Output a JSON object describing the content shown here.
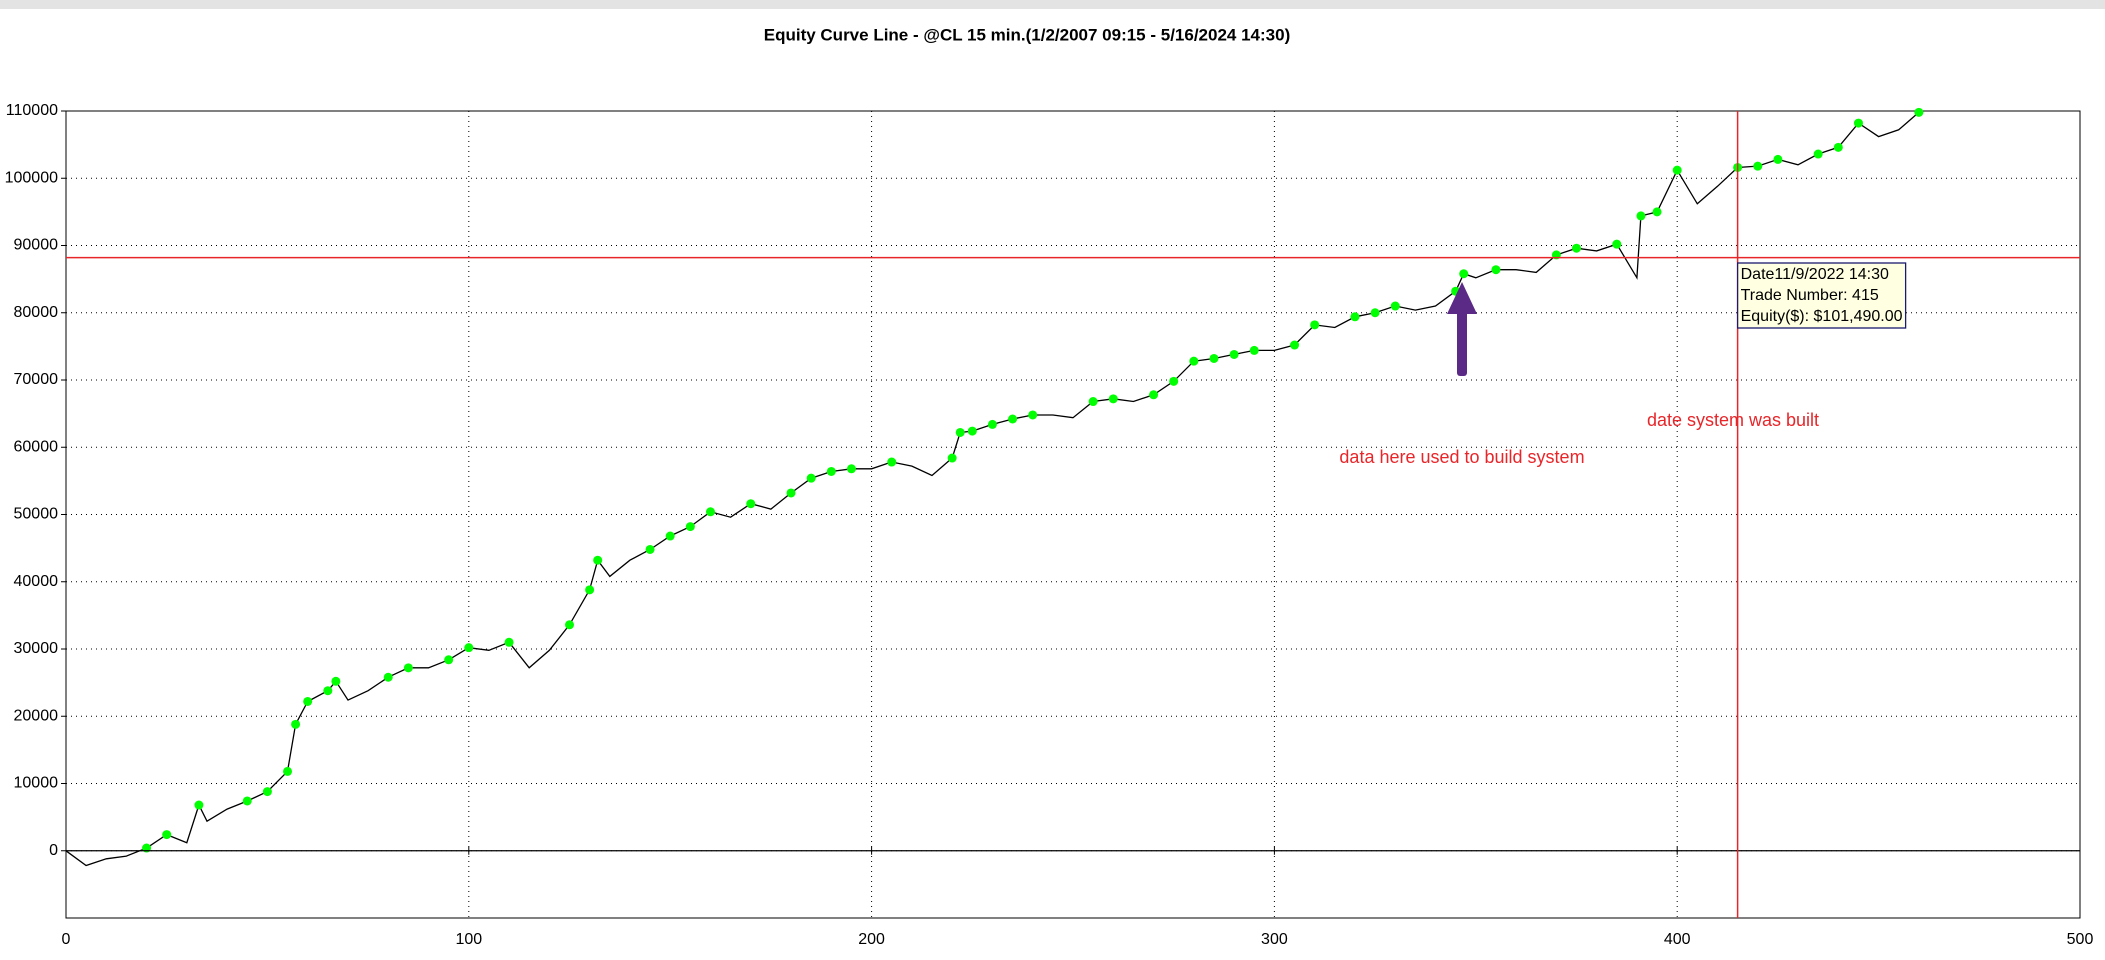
{
  "chart_data": {
    "type": "line",
    "title": "Equity Curve Line - @CL 15 min.(1/2/2007 09:15 - 5/16/2024 14:30)",
    "x": [
      0,
      5,
      10,
      15,
      20,
      25,
      30,
      33,
      35,
      40,
      45,
      50,
      55,
      57,
      60,
      65,
      67,
      70,
      75,
      80,
      85,
      90,
      95,
      100,
      105,
      110,
      115,
      120,
      125,
      130,
      132,
      135,
      140,
      145,
      150,
      155,
      160,
      165,
      170,
      175,
      180,
      185,
      190,
      195,
      200,
      205,
      210,
      215,
      220,
      222,
      225,
      230,
      235,
      240,
      245,
      250,
      255,
      260,
      265,
      270,
      275,
      280,
      285,
      290,
      295,
      300,
      305,
      310,
      315,
      320,
      325,
      330,
      335,
      340,
      345,
      347,
      350,
      355,
      360,
      365,
      370,
      375,
      380,
      385,
      390,
      391,
      395,
      400,
      405,
      410,
      415,
      420,
      425,
      430,
      435,
      440,
      445,
      450,
      455,
      460
    ],
    "series": [
      {
        "color": "#000000",
        "style": "line",
        "values": [
          0,
          -2200,
          -1200,
          -800,
          400,
          2400,
          1200,
          6800,
          4400,
          6200,
          7400,
          8800,
          11800,
          18800,
          22200,
          23800,
          25200,
          22400,
          23800,
          25800,
          27200,
          27200,
          28400,
          30200,
          29800,
          31000,
          27200,
          29800,
          33600,
          38800,
          43200,
          40800,
          43200,
          44800,
          46800,
          48200,
          50400,
          49600,
          51600,
          50800,
          53200,
          55400,
          56400,
          56800,
          56800,
          57800,
          57200,
          55800,
          58400,
          62200,
          62400,
          63400,
          64200,
          64800,
          64800,
          64400,
          66800,
          67200,
          66800,
          67800,
          69800,
          72800,
          73200,
          73800,
          74400,
          74400,
          75200,
          78200,
          77800,
          79400,
          80000,
          81000,
          80400,
          81000,
          83200,
          85800,
          85200,
          86400,
          86400,
          86000,
          88600,
          89600,
          89200,
          90200,
          85200,
          94400,
          95000,
          101200,
          96200,
          98800,
          101600,
          101800,
          102800,
          102000,
          103600,
          104600,
          108200,
          106200,
          107200,
          109800
        ]
      },
      {
        "color": "#00ff00",
        "style": "markers",
        "values": [
          null,
          null,
          null,
          null,
          400,
          2400,
          null,
          6800,
          null,
          null,
          7400,
          8800,
          11800,
          18800,
          22200,
          23800,
          25200,
          null,
          null,
          25800,
          27200,
          null,
          28400,
          30200,
          null,
          31000,
          null,
          null,
          33600,
          38800,
          43200,
          null,
          null,
          44800,
          46800,
          48200,
          50400,
          null,
          51600,
          null,
          53200,
          55400,
          56400,
          56800,
          null,
          57800,
          null,
          null,
          58400,
          62200,
          62400,
          63400,
          64200,
          64800,
          null,
          null,
          66800,
          67200,
          null,
          67800,
          69800,
          72800,
          73200,
          73800,
          74400,
          null,
          75200,
          78200,
          null,
          79400,
          80000,
          81000,
          null,
          null,
          83200,
          85800,
          null,
          86400,
          null,
          null,
          88600,
          89600,
          null,
          90200,
          null,
          94400,
          95000,
          101200,
          null,
          null,
          101600,
          101800,
          102800,
          null,
          103600,
          104600,
          108200,
          null,
          null,
          109800
        ]
      }
    ],
    "xlim": [
      0,
      500
    ],
    "xticks": [
      0,
      100,
      200,
      300,
      400,
      500
    ],
    "ylim": [
      -10000,
      110000
    ],
    "yticks": [
      0,
      10000,
      20000,
      30000,
      40000,
      50000,
      60000,
      70000,
      80000,
      90000,
      100000,
      110000
    ],
    "grid": true,
    "hline": {
      "value": 88200,
      "color": "#e8262a"
    },
    "vline": {
      "value": 415,
      "color": "#e8262a"
    },
    "tooltip": [
      "Date11/9/2022 14:30",
      "Trade Number: 415",
      "Equity($): $101,490.00"
    ],
    "annotations": [
      "data here used to build system",
      "date system was built"
    ]
  }
}
